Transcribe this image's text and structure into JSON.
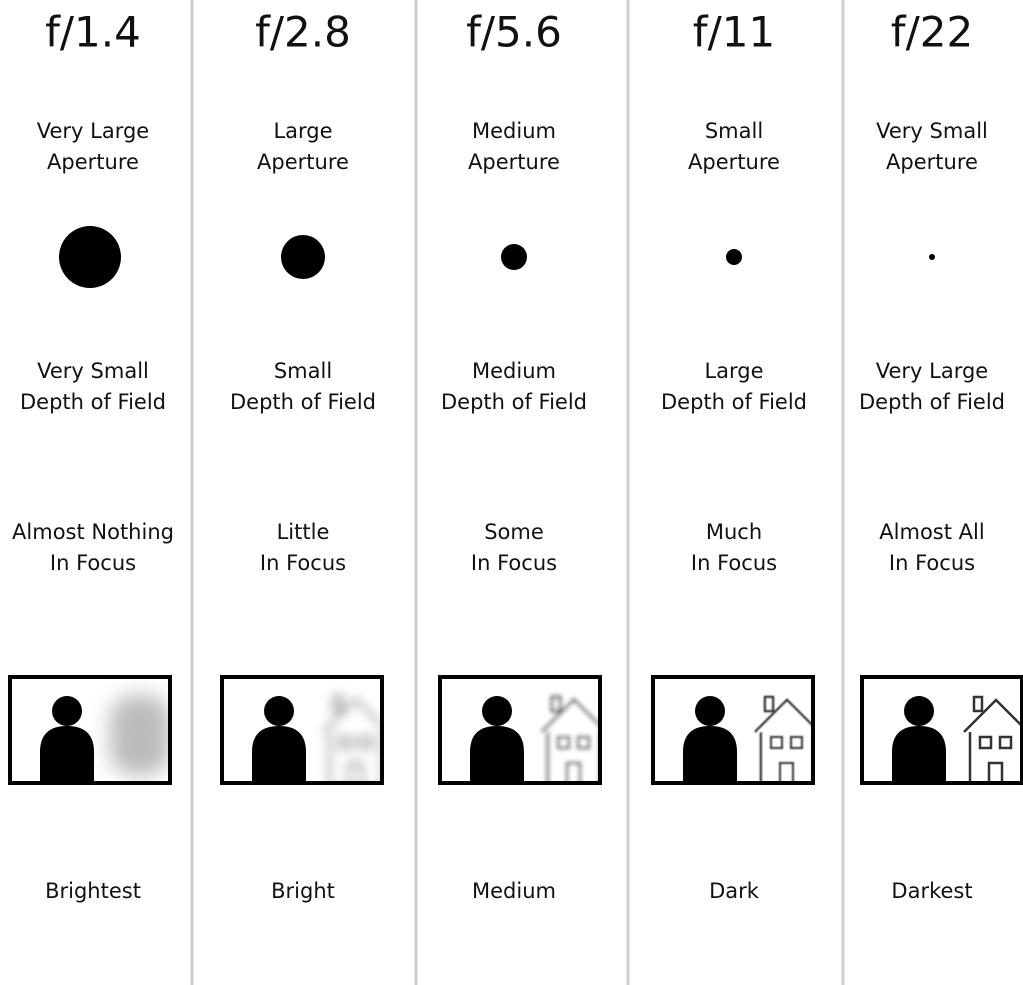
{
  "columns": [
    {
      "f_stop": "f/1.4",
      "aperture": [
        "Very Large",
        "Aperture"
      ],
      "depth_of_field": [
        "Very Small",
        "Depth of Field"
      ],
      "focus": [
        "Almost Nothing",
        "In Focus"
      ],
      "brightness": "Brightest"
    },
    {
      "f_stop": "f/2.8",
      "aperture": [
        "Large",
        "Aperture"
      ],
      "depth_of_field": [
        "Small",
        "Depth of Field"
      ],
      "focus": [
        "Little",
        "In Focus"
      ],
      "brightness": "Bright"
    },
    {
      "f_stop": "f/5.6",
      "aperture": [
        "Medium",
        "Aperture"
      ],
      "depth_of_field": [
        "Medium",
        "Depth of Field"
      ],
      "focus": [
        "Some",
        "In Focus"
      ],
      "brightness": "Medium"
    },
    {
      "f_stop": "f/11",
      "aperture": [
        "Small",
        "Aperture"
      ],
      "depth_of_field": [
        "Large",
        "Depth of Field"
      ],
      "focus": [
        "Much",
        "In Focus"
      ],
      "brightness": "Dark"
    },
    {
      "f_stop": "f/22",
      "aperture": [
        "Very Small",
        "Aperture"
      ],
      "depth_of_field": [
        "Very Large",
        "Depth of Field"
      ],
      "focus": [
        "Almost All",
        "In Focus"
      ],
      "brightness": "Darkest"
    }
  ]
}
